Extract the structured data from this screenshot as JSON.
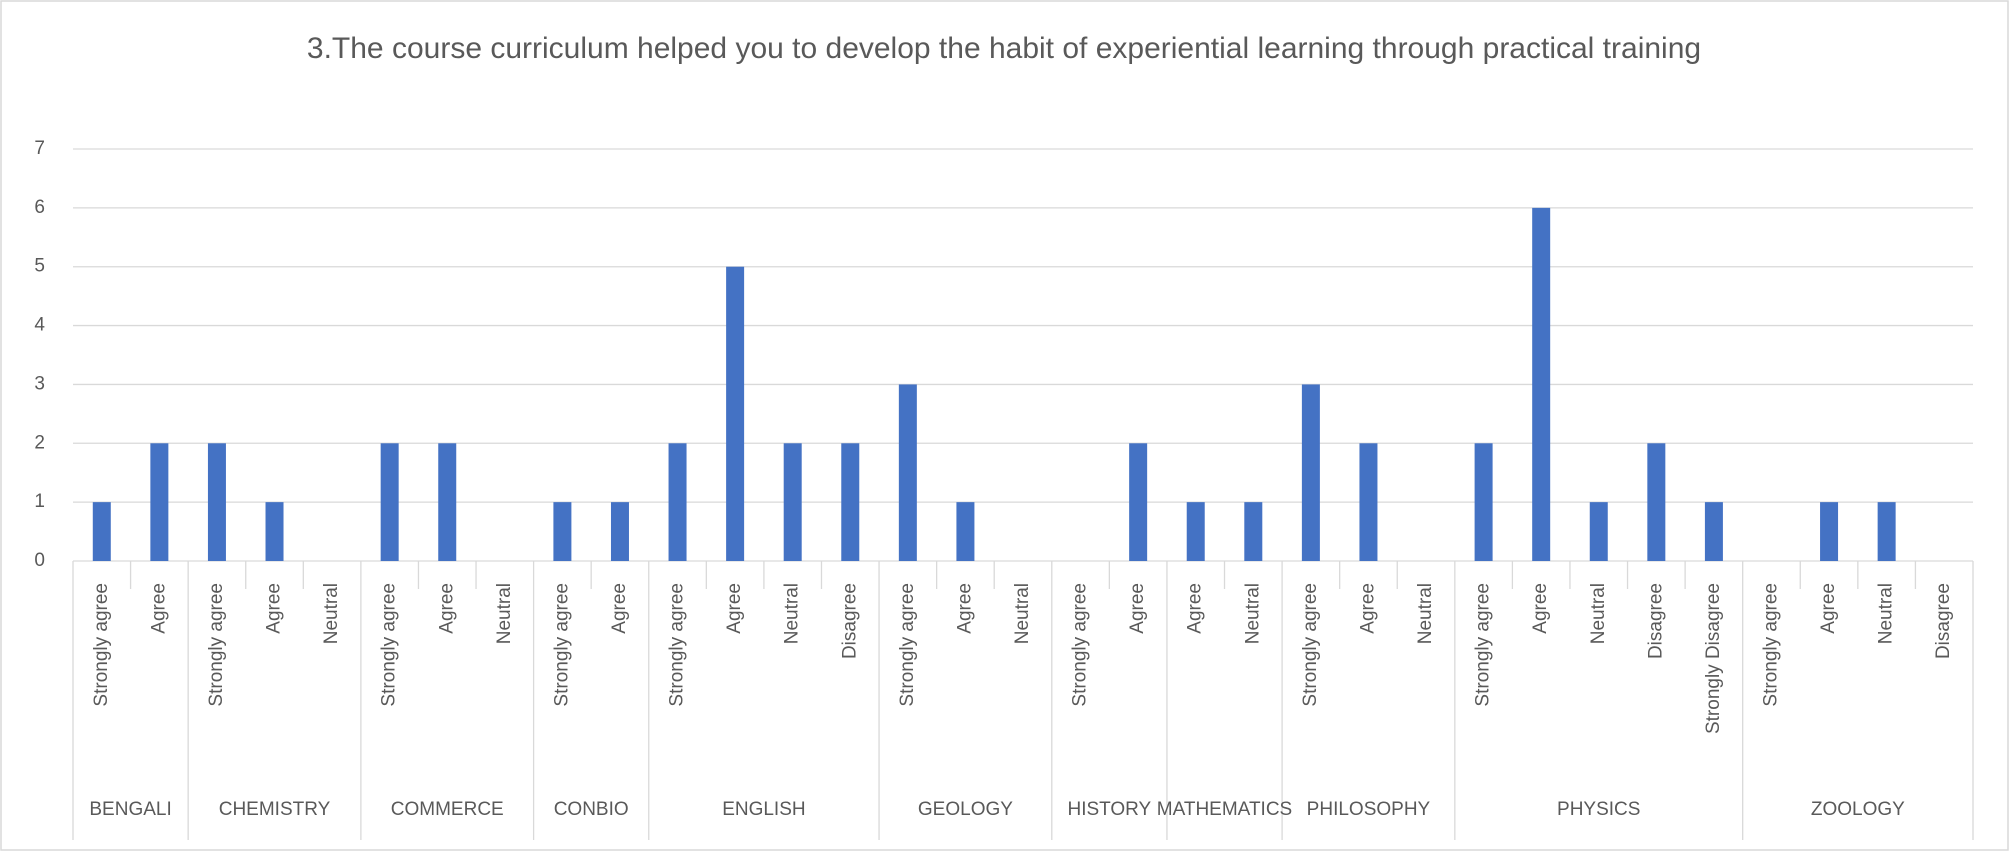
{
  "chart_data": {
    "type": "bar",
    "title": "3.The course curriculum helped you to develop the habit of experiential learning through practical training",
    "color": "#4472c4",
    "ylim": [
      0,
      7
    ],
    "yticks": [
      0,
      1,
      2,
      3,
      4,
      5,
      6,
      7
    ],
    "grid": true,
    "groups": [
      {
        "name": "BENGALI",
        "categories": [
          "Strongly agree",
          "Agree"
        ],
        "values": [
          1,
          2
        ]
      },
      {
        "name": "CHEMISTRY",
        "categories": [
          "Strongly agree",
          "Agree",
          "Neutral"
        ],
        "values": [
          2,
          1,
          0
        ]
      },
      {
        "name": "COMMERCE",
        "categories": [
          "Strongly agree",
          "Agree",
          "Neutral"
        ],
        "values": [
          2,
          2,
          0
        ]
      },
      {
        "name": "CONBIO",
        "categories": [
          "Strongly agree",
          "Agree"
        ],
        "values": [
          1,
          1
        ]
      },
      {
        "name": "ENGLISH",
        "categories": [
          "Strongly agree",
          "Agree",
          "Neutral",
          "Disagree"
        ],
        "values": [
          2,
          5,
          2,
          2
        ]
      },
      {
        "name": "GEOLOGY",
        "categories": [
          "Strongly agree",
          "Agree",
          "Neutral"
        ],
        "values": [
          3,
          1,
          0
        ]
      },
      {
        "name": "HISTORY",
        "categories": [
          "Strongly agree",
          "Agree"
        ],
        "values": [
          0,
          2
        ]
      },
      {
        "name": "MATHEMATICS",
        "categories": [
          "Agree",
          "Neutral"
        ],
        "values": [
          1,
          1
        ]
      },
      {
        "name": "PHILOSOPHY",
        "categories": [
          "Strongly agree",
          "Agree",
          "Neutral"
        ],
        "values": [
          3,
          2,
          0
        ]
      },
      {
        "name": "PHYSICS",
        "categories": [
          "Strongly agree",
          "Agree",
          "Neutral",
          "Disagree",
          "Strongly Disagree"
        ],
        "values": [
          2,
          6,
          1,
          2,
          1
        ]
      },
      {
        "name": "ZOOLOGY",
        "categories": [
          "Strongly agree",
          "Agree",
          "Neutral",
          "Disagree"
        ],
        "values": [
          0,
          1,
          1,
          0
        ]
      }
    ]
  }
}
